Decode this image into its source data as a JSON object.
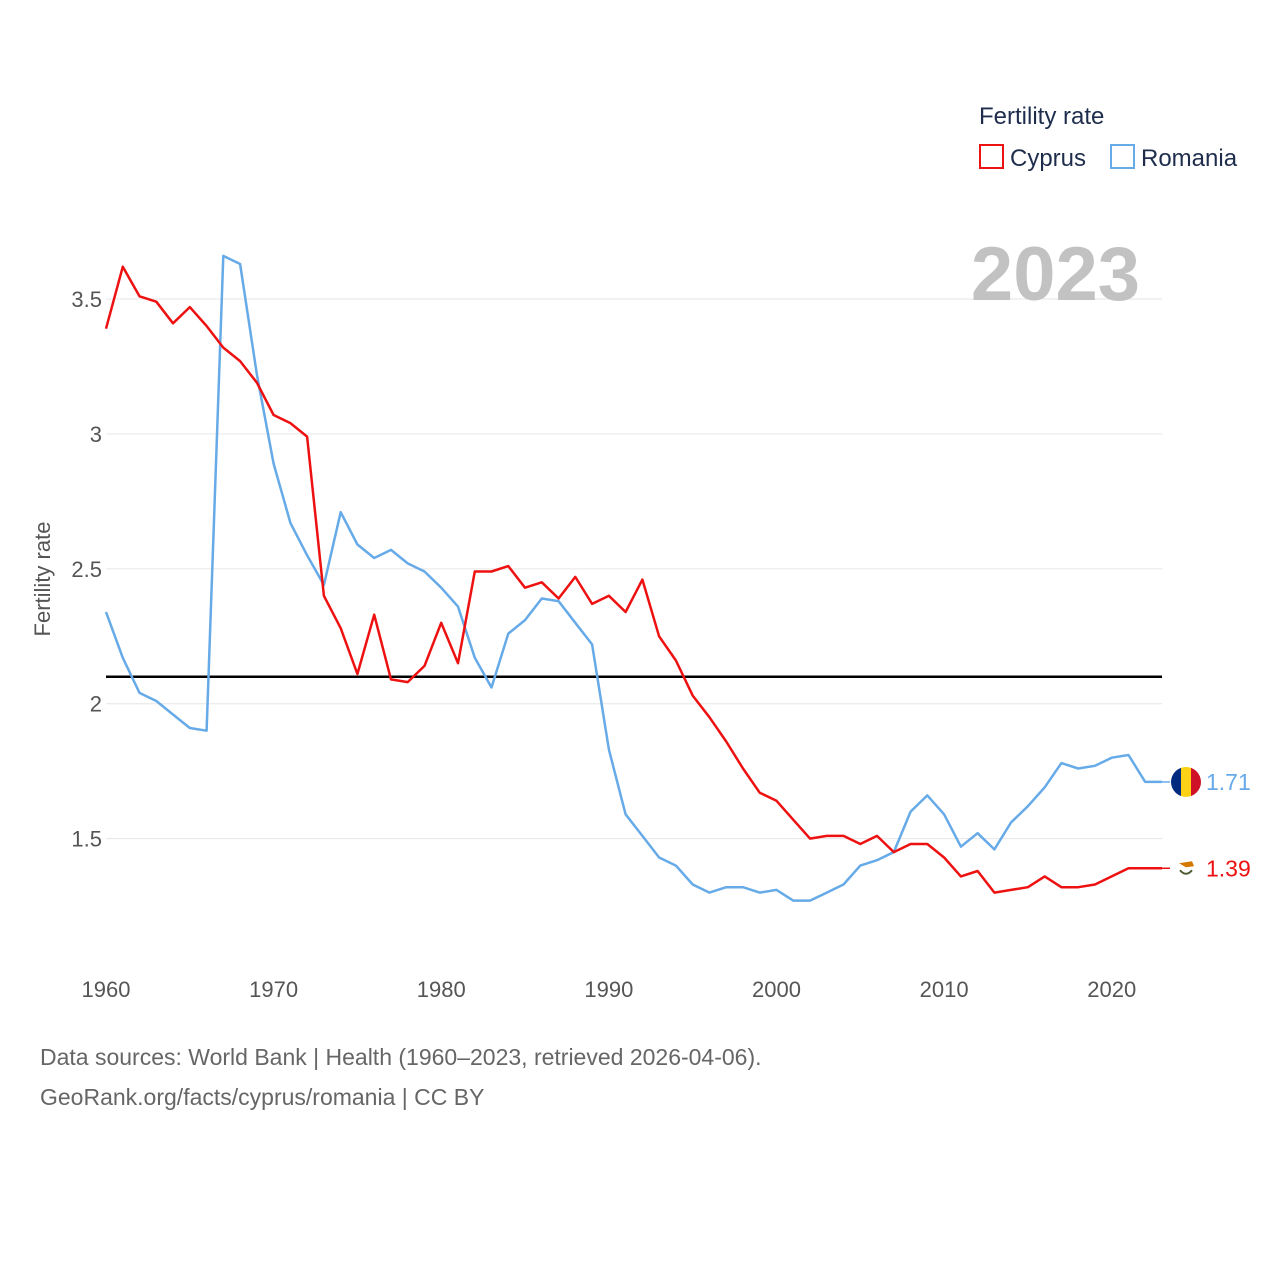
{
  "chart_data": {
    "type": "line",
    "year_label": "2023",
    "ylabel": "Fertility rate",
    "xlabel": "",
    "xlim": [
      1960,
      2023
    ],
    "ylim": [
      1.05,
      3.83
    ],
    "x_ticks": [
      1960,
      1970,
      1980,
      1990,
      2000,
      2010,
      2020
    ],
    "y_ticks": [
      {
        "value": 1.5,
        "label": "1.5"
      },
      {
        "value": 2,
        "label": "2"
      },
      {
        "value": 2.5,
        "label": "2.5"
      },
      {
        "value": 3,
        "label": "3"
      },
      {
        "value": 3.5,
        "label": "3.5"
      }
    ],
    "grid": true,
    "reference_line": {
      "value": 2.1,
      "color": "#000000"
    },
    "legend": {
      "title": "Fertility rate",
      "position": "top-right",
      "items": [
        {
          "name": "Cyprus",
          "color": "#ee1111"
        },
        {
          "name": "Romania",
          "color": "#66aae8"
        }
      ]
    },
    "x": [
      1960,
      1961,
      1962,
      1963,
      1964,
      1965,
      1966,
      1967,
      1968,
      1969,
      1970,
      1971,
      1972,
      1973,
      1974,
      1975,
      1976,
      1977,
      1978,
      1979,
      1980,
      1981,
      1982,
      1983,
      1984,
      1985,
      1986,
      1987,
      1988,
      1989,
      1990,
      1991,
      1992,
      1993,
      1994,
      1995,
      1996,
      1997,
      1998,
      1999,
      2000,
      2001,
      2002,
      2003,
      2004,
      2005,
      2006,
      2007,
      2008,
      2009,
      2010,
      2011,
      2012,
      2013,
      2014,
      2015,
      2016,
      2017,
      2018,
      2019,
      2020,
      2021,
      2022,
      2023
    ],
    "series": [
      {
        "name": "Cyprus",
        "color": "#ee1111",
        "end_label": "1.39",
        "values": [
          3.39,
          3.62,
          3.51,
          3.49,
          3.41,
          3.47,
          3.4,
          3.32,
          3.27,
          3.19,
          3.07,
          3.04,
          2.99,
          2.4,
          2.28,
          2.11,
          2.33,
          2.09,
          2.08,
          2.14,
          2.3,
          2.15,
          2.49,
          2.49,
          2.51,
          2.43,
          2.45,
          2.39,
          2.47,
          2.37,
          2.4,
          2.34,
          2.46,
          2.25,
          2.16,
          2.03,
          1.95,
          1.86,
          1.76,
          1.67,
          1.64,
          1.57,
          1.5,
          1.51,
          1.51,
          1.48,
          1.51,
          1.45,
          1.48,
          1.48,
          1.43,
          1.36,
          1.38,
          1.3,
          1.31,
          1.32,
          1.36,
          1.32,
          1.32,
          1.33,
          1.36,
          1.39,
          1.39,
          1.39
        ]
      },
      {
        "name": "Romania",
        "color": "#66aae8",
        "end_label": "1.71",
        "values": [
          2.34,
          2.17,
          2.04,
          2.01,
          1.96,
          1.91,
          1.9,
          3.66,
          3.63,
          3.22,
          2.89,
          2.67,
          2.55,
          2.44,
          2.71,
          2.59,
          2.54,
          2.57,
          2.52,
          2.49,
          2.43,
          2.36,
          2.17,
          2.06,
          2.26,
          2.31,
          2.39,
          2.38,
          2.3,
          2.22,
          1.83,
          1.59,
          1.51,
          1.43,
          1.4,
          1.33,
          1.3,
          1.32,
          1.32,
          1.3,
          1.31,
          1.27,
          1.27,
          1.3,
          1.33,
          1.4,
          1.42,
          1.45,
          1.6,
          1.66,
          1.59,
          1.47,
          1.52,
          1.46,
          1.56,
          1.62,
          1.69,
          1.78,
          1.76,
          1.77,
          1.8,
          1.81,
          1.71,
          1.71
        ]
      }
    ]
  },
  "footer": {
    "line1": "Data sources: World Bank | Health (1960–2023, retrieved 2026-04-06).",
    "line2": "GeoRank.org/facts/cyprus/romania | CC BY"
  }
}
